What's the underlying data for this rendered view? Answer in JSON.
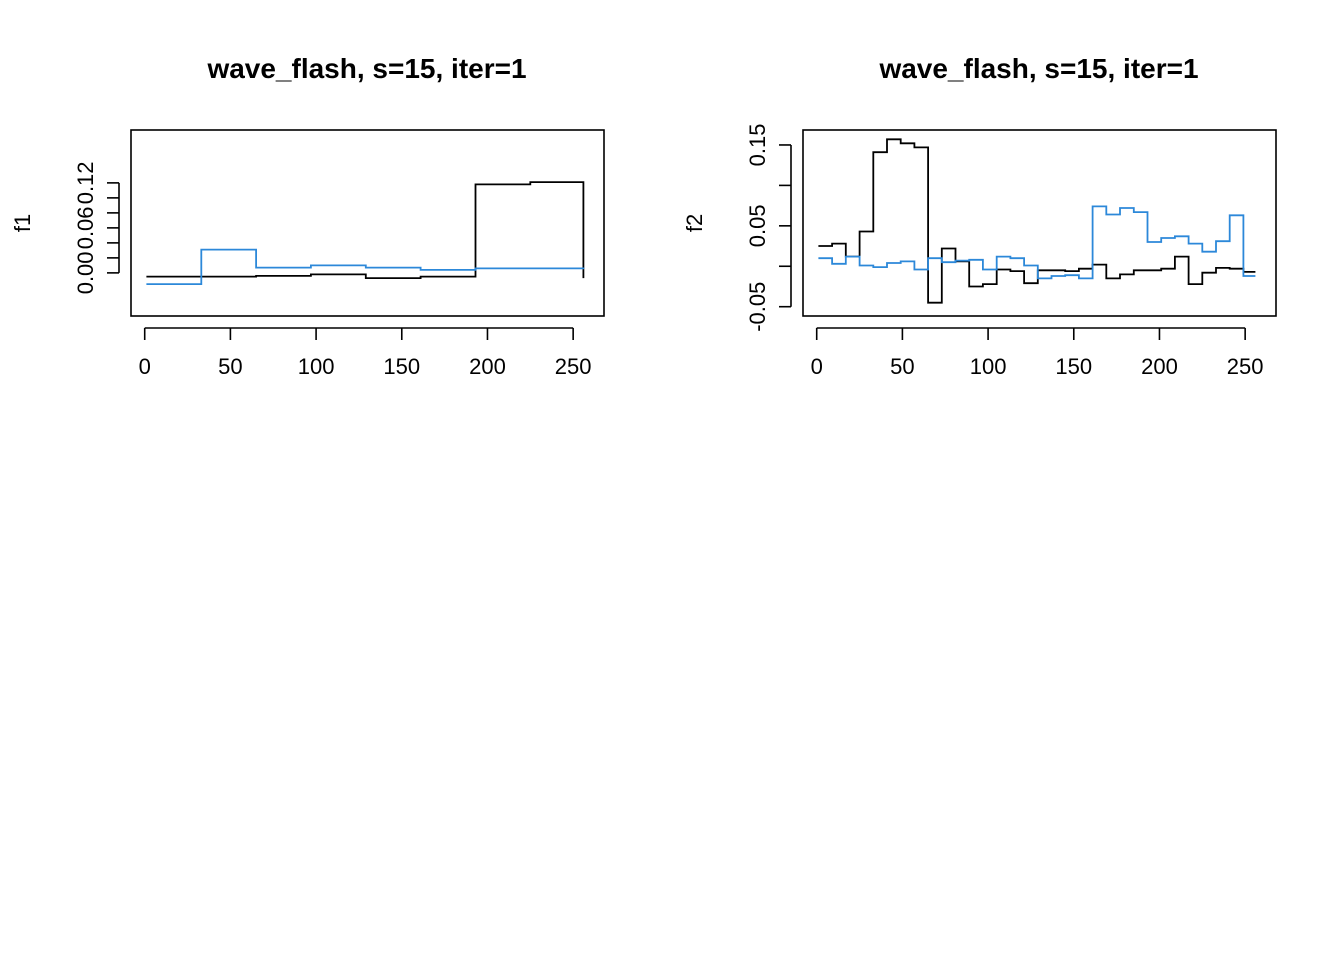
{
  "colors": {
    "series_black": "#000000",
    "series_blue": "#2c88d9"
  },
  "chart_data": [
    {
      "type": "line",
      "title": "wave_flash, s=15, iter=1",
      "xlabel": "",
      "ylabel": "f1",
      "xlim": [
        -8,
        268
      ],
      "ylim": [
        -0.0575,
        0.1905
      ],
      "xticks": [
        0,
        50,
        100,
        150,
        200,
        250
      ],
      "yticks": [
        0.0,
        0.02,
        0.04,
        0.06,
        0.08,
        0.1,
        0.12
      ],
      "ytick_labels": [
        {
          "value": 0.0,
          "label": "0.00"
        },
        {
          "value": 0.06,
          "label": "0.06"
        },
        {
          "value": 0.12,
          "label": "0.12"
        }
      ],
      "grid": false,
      "step": true,
      "series": [
        {
          "color": "#000000",
          "x": [
            1,
            65,
            97,
            129,
            161,
            193,
            225,
            256
          ],
          "y": [
            -0.005,
            -0.004,
            -0.002,
            -0.007,
            -0.005,
            0.118,
            0.121,
            -0.007
          ]
        },
        {
          "color": "#2c88d9",
          "x": [
            1,
            33,
            65,
            97,
            129,
            161,
            193,
            256
          ],
          "y": [
            -0.015,
            0.031,
            0.007,
            0.01,
            0.007,
            0.004,
            0.006,
            0.005
          ]
        }
      ]
    },
    {
      "type": "line",
      "title": "wave_flash, s=15, iter=1",
      "xlabel": "",
      "ylabel": "f2",
      "xlim": [
        -8,
        268
      ],
      "ylim": [
        -0.0615,
        0.1685
      ],
      "xticks": [
        0,
        50,
        100,
        150,
        200,
        250
      ],
      "yticks": [
        -0.05,
        0.0,
        0.05,
        0.1,
        0.15
      ],
      "ytick_labels": [
        {
          "value": -0.05,
          "label": "-0.05"
        },
        {
          "value": 0.05,
          "label": "0.05"
        },
        {
          "value": 0.15,
          "label": "0.15"
        }
      ],
      "grid": false,
      "step": true,
      "series": [
        {
          "color": "#000000",
          "x": [
            1,
            9,
            17,
            25,
            33,
            41,
            49,
            57,
            65,
            73,
            81,
            89,
            97,
            105,
            113,
            121,
            129,
            137,
            145,
            153,
            161,
            169,
            177,
            185,
            193,
            201,
            209,
            217,
            225,
            233,
            241,
            249,
            256
          ],
          "y": [
            0.025,
            0.028,
            0.012,
            0.043,
            0.141,
            0.157,
            0.152,
            0.147,
            -0.045,
            0.022,
            0.006,
            -0.025,
            -0.022,
            -0.004,
            -0.006,
            -0.021,
            -0.005,
            -0.005,
            -0.006,
            -0.003,
            0.002,
            -0.015,
            -0.01,
            -0.005,
            -0.005,
            -0.003,
            0.012,
            -0.022,
            -0.008,
            -0.002,
            -0.003,
            -0.007,
            -0.007
          ]
        },
        {
          "color": "#2c88d9",
          "x": [
            1,
            9,
            17,
            25,
            33,
            41,
            49,
            57,
            65,
            73,
            81,
            89,
            97,
            105,
            113,
            121,
            129,
            137,
            145,
            153,
            161,
            169,
            177,
            185,
            193,
            201,
            209,
            217,
            225,
            233,
            241,
            249,
            256
          ],
          "y": [
            0.01,
            0.003,
            0.012,
            0.001,
            -0.001,
            0.004,
            0.006,
            -0.004,
            0.01,
            0.005,
            0.007,
            0.008,
            -0.004,
            0.012,
            0.01,
            0.001,
            -0.015,
            -0.012,
            -0.011,
            -0.015,
            0.074,
            0.064,
            0.072,
            0.067,
            0.03,
            0.035,
            0.037,
            0.028,
            0.018,
            0.031,
            0.063,
            -0.012,
            -0.012
          ]
        }
      ]
    }
  ]
}
